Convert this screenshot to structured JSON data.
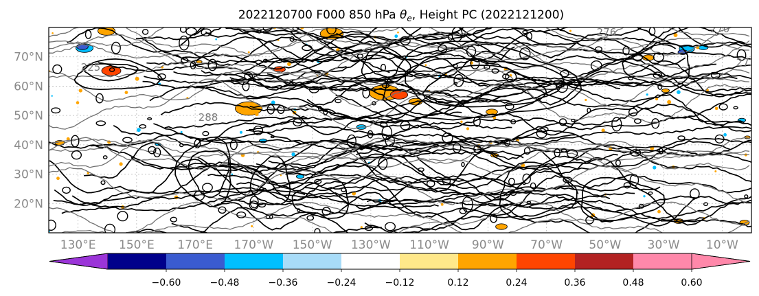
{
  "chart_data": {
    "type": "contour-map",
    "title": "2022120700 F000 850 hPa θe, Height PC (2022121200)",
    "title_parts": {
      "prefix": "2022120700 F000 850 hPa ",
      "theta_symbol": "θ",
      "theta_sub": "e",
      "suffix": ", Height PC (2022121200)"
    },
    "lat_ticks": [
      "70°N",
      "60°N",
      "50°N",
      "40°N",
      "30°N",
      "20°N"
    ],
    "lat_values": [
      70,
      60,
      50,
      40,
      30,
      20
    ],
    "lat_range": [
      10,
      80
    ],
    "lon_ticks": [
      "130°E",
      "150°E",
      "170°E",
      "170°W",
      "150°W",
      "130°W",
      "110°W",
      "90°W",
      "70°W",
      "50°W",
      "30°W",
      "10°W"
    ],
    "lon_values": [
      130,
      150,
      170,
      190,
      210,
      230,
      250,
      270,
      290,
      310,
      330,
      350
    ],
    "lon_range": [
      120,
      360
    ],
    "contour_labels": [
      "276",
      "270",
      "288",
      "273",
      "225"
    ],
    "colorbar": {
      "ticks": [
        "−0.60",
        "−0.48",
        "−0.36",
        "−0.24",
        "−0.12",
        "0.12",
        "0.24",
        "0.36",
        "0.48",
        "0.60"
      ],
      "tick_values": [
        -0.6,
        -0.48,
        -0.36,
        -0.24,
        -0.12,
        0.12,
        0.24,
        0.36,
        0.48,
        0.6
      ],
      "colors": [
        "#9b35d8",
        "#00008b",
        "#3a5bd0",
        "#00bfff",
        "#a8dcf8",
        "#ffffff",
        "#ffe88a",
        "#ffa500",
        "#ff4500",
        "#b22222",
        "#ff88aa"
      ],
      "extend": "both"
    }
  }
}
